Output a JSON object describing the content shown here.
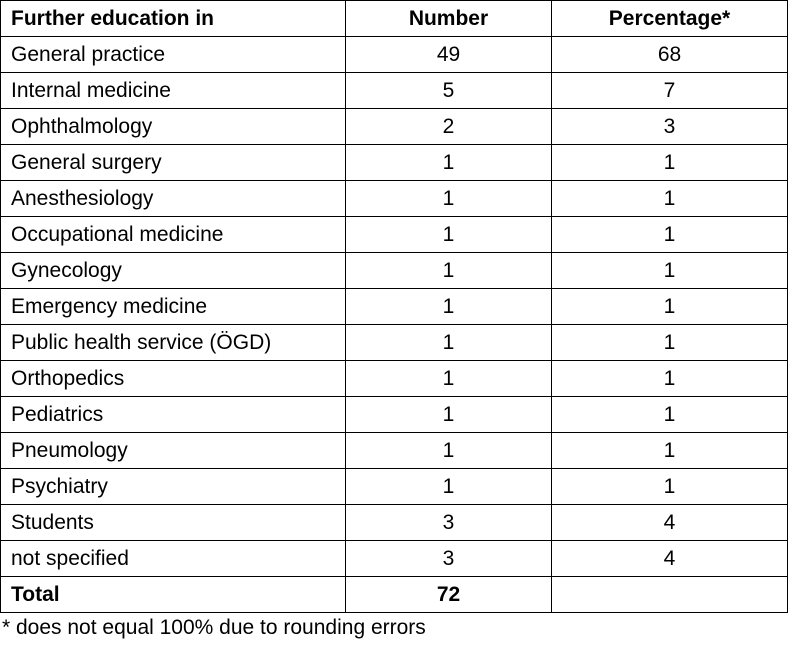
{
  "table": {
    "headers": [
      "Further education in",
      "Number",
      "Percentage*"
    ],
    "rows": [
      [
        "General practice",
        "49",
        "68"
      ],
      [
        "Internal medicine",
        "5",
        "7"
      ],
      [
        "Ophthalmology",
        "2",
        "3"
      ],
      [
        "General surgery",
        "1",
        "1"
      ],
      [
        "Anesthesiology",
        "1",
        "1"
      ],
      [
        "Occupational medicine",
        "1",
        "1"
      ],
      [
        "Gynecology",
        "1",
        "1"
      ],
      [
        "Emergency medicine",
        "1",
        "1"
      ],
      [
        "Public health service (ÖGD)",
        "1",
        "1"
      ],
      [
        "Orthopedics",
        "1",
        "1"
      ],
      [
        "Pediatrics",
        "1",
        "1"
      ],
      [
        "Pneumology",
        "1",
        "1"
      ],
      [
        "Psychiatry",
        "1",
        "1"
      ],
      [
        "Students",
        "3",
        "4"
      ],
      [
        "not specified",
        "3",
        "4"
      ]
    ],
    "total": [
      "Total",
      "72",
      ""
    ]
  },
  "footnote": "* does not equal 100% due to rounding errors"
}
